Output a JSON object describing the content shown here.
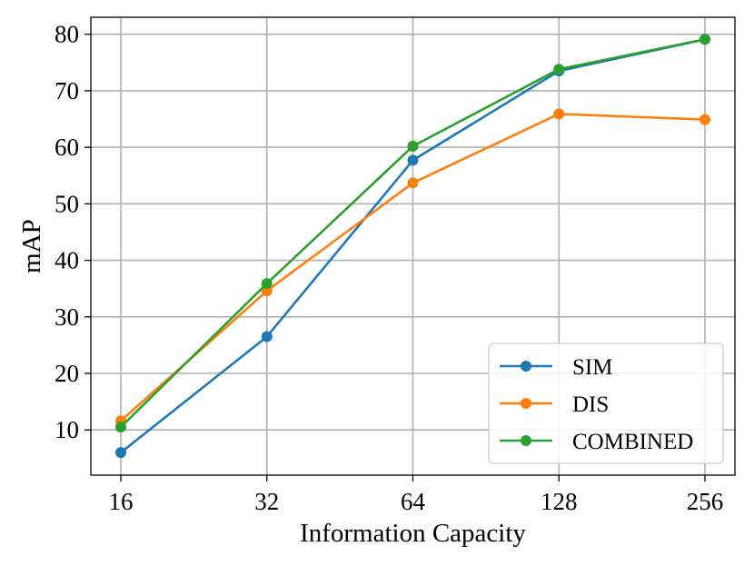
{
  "chart_data": {
    "type": "line",
    "title": "",
    "xlabel": "Information Capacity",
    "ylabel": "mAP",
    "x": [
      16,
      32,
      64,
      128,
      256
    ],
    "x_tick_labels": [
      "16",
      "32",
      "64",
      "128",
      "256"
    ],
    "x_scale": "log2",
    "ylim": [
      2,
      83
    ],
    "y_ticks": [
      10,
      20,
      30,
      40,
      50,
      60,
      70,
      80
    ],
    "y_tick_labels": [
      "10",
      "20",
      "30",
      "40",
      "50",
      "60",
      "70",
      "80"
    ],
    "grid": true,
    "legend_position": "lower-right",
    "series": [
      {
        "name": "SIM",
        "color": "#1f77b4",
        "values": [
          6.0,
          26.5,
          57.7,
          73.5,
          79.1
        ]
      },
      {
        "name": "DIS",
        "color": "#ff7f0e",
        "values": [
          11.6,
          34.6,
          53.7,
          65.9,
          64.9
        ]
      },
      {
        "name": "COMBINED",
        "color": "#2ca02c",
        "values": [
          10.5,
          35.9,
          60.2,
          73.8,
          79.1
        ]
      }
    ]
  }
}
